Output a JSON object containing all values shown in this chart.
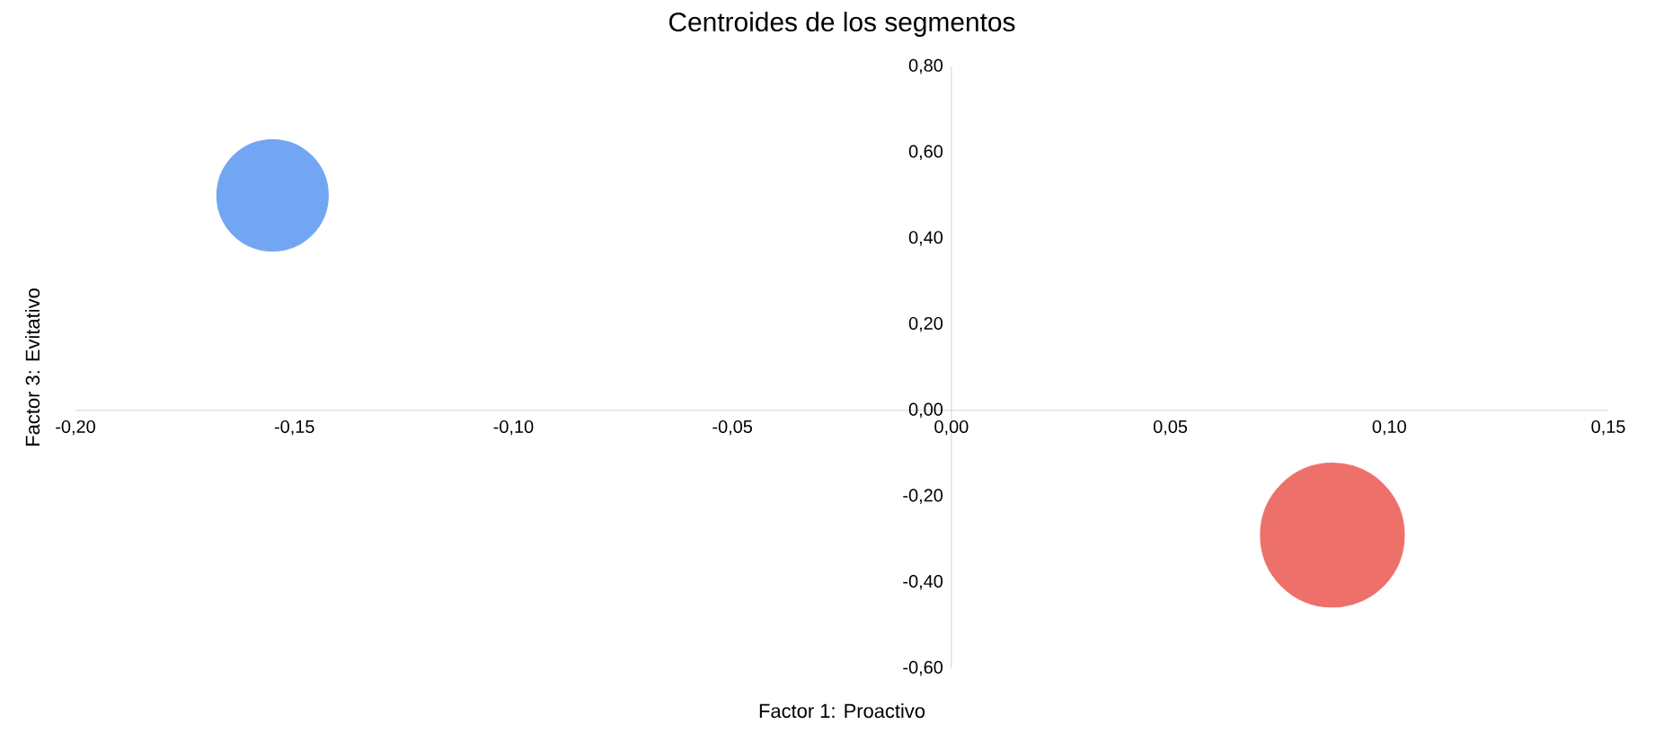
{
  "chart_data": {
    "type": "bubble",
    "title": "Centroides de los segmentos",
    "xlabel": "Factor 1: Proactivo",
    "ylabel": "Factor 3: Evitativo",
    "x": [
      -0.155,
      0.087
    ],
    "values": [
      0.5,
      -0.29
    ],
    "sizes": [
      0.6,
      1
    ],
    "colors": [
      "#72a6f2",
      "#ee706b"
    ],
    "xlim": [
      -0.2,
      0.15
    ],
    "ylim": [
      -0.6,
      0.8
    ],
    "xticks": [
      {
        "value": -0.2,
        "label": "-0,20"
      },
      {
        "value": -0.15,
        "label": "-0,15"
      },
      {
        "value": -0.1,
        "label": "-0,10"
      },
      {
        "value": -0.05,
        "label": "-0,05"
      },
      {
        "value": 0,
        "label": "0,00"
      },
      {
        "value": 0.05,
        "label": "0,05"
      },
      {
        "value": 0.1,
        "label": "0,10"
      },
      {
        "value": 0.15,
        "label": "0,15"
      }
    ],
    "yticks": [
      {
        "value": -0.6,
        "label": "-0,60"
      },
      {
        "value": -0.4,
        "label": "-0,40"
      },
      {
        "value": -0.2,
        "label": "-0,20"
      },
      {
        "value": 0,
        "label": "0,00"
      },
      {
        "value": 0.2,
        "label": "0,20"
      },
      {
        "value": 0.4,
        "label": "0,40"
      },
      {
        "value": 0.6,
        "label": "0,60"
      },
      {
        "value": 0.8,
        "label": "0,80"
      }
    ],
    "grid": false
  }
}
